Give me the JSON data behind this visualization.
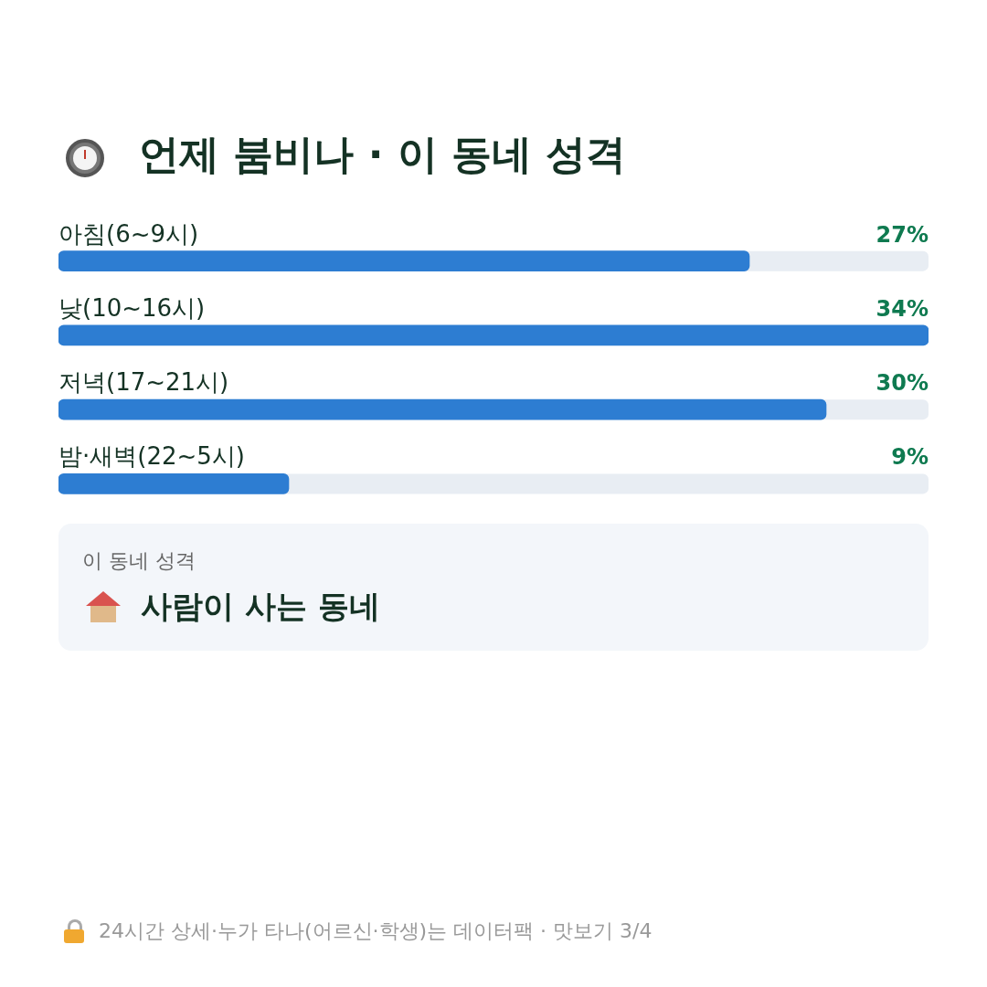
{
  "chart_data": {
    "type": "bar",
    "orientation": "horizontal",
    "relative": false,
    "title": "언제 붐비나 · 이 동네 성격",
    "categories": [
      "아침(6~9시)",
      "낮(10~16시)",
      "저녁(17~21시)",
      "밤·새벽(22~5시)"
    ],
    "values": [
      27,
      34,
      30,
      9
    ],
    "value_labels": [
      "27%",
      "34%",
      "30%",
      "9%"
    ],
    "color": "#2d7dd2",
    "legend": false,
    "annotations": [
      "이 동네 성격",
      "사람이 사는 동네",
      "24시간 상세·누가 타나(어르신·학생)는 데이터팩 · 맛보기 3/4"
    ]
  }
}
